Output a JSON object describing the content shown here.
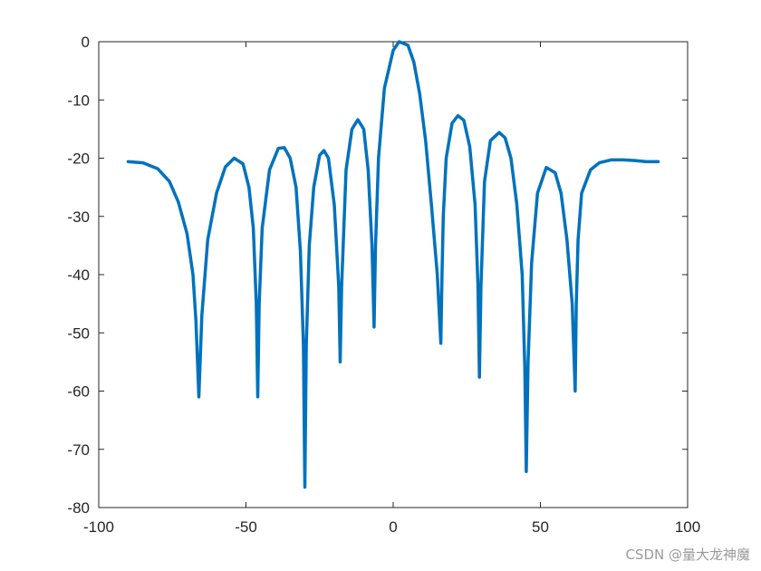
{
  "chart_data": {
    "type": "line",
    "title": "",
    "xlabel": "",
    "ylabel": "",
    "xlim": [
      -100,
      100
    ],
    "ylim": [
      -80,
      0
    ],
    "xticks": [
      -100,
      -50,
      0,
      50,
      100
    ],
    "yticks": [
      0,
      -10,
      -20,
      -30,
      -40,
      -50,
      -60,
      -70,
      -80
    ],
    "xtick_labels": [
      "-100",
      "-50",
      "0",
      "50",
      "100"
    ],
    "ytick_labels": [
      "0",
      "-10",
      "-20",
      "-30",
      "-40",
      "-50",
      "-60",
      "-70",
      "-80"
    ],
    "grid": false,
    "series": [
      {
        "color": "#0072BD",
        "x": [
          -90,
          -85,
          -80,
          -76,
          -73,
          -70,
          -68,
          -67,
          -66,
          -65,
          -63,
          -60,
          -57,
          -54,
          -51,
          -49,
          -47.5,
          -46.5,
          -46,
          -45.5,
          -44.5,
          -42,
          -39,
          -37,
          -35,
          -33,
          -31.5,
          -30.5,
          -30,
          -29.5,
          -28.5,
          -27,
          -25,
          -23.5,
          -22,
          -20,
          -18.5,
          -18,
          -17.5,
          -16,
          -14,
          -12,
          -10,
          -8.5,
          -7.2,
          -6.5,
          -6,
          -5,
          -3,
          0,
          2,
          5,
          7,
          9,
          11,
          13,
          15,
          16.2,
          16.6,
          17,
          18,
          20,
          22,
          24,
          26,
          27.8,
          28.8,
          29.3,
          29.8,
          31,
          33,
          36,
          38,
          40,
          42,
          43.8,
          44.7,
          45.2,
          45.8,
          47,
          49,
          52,
          55,
          57,
          59,
          60.8,
          61.8,
          62.2,
          62.8,
          64,
          67,
          70,
          74,
          78,
          82,
          86,
          90
        ],
        "y": [
          -20.6,
          -20.8,
          -21.8,
          -24,
          -27.5,
          -33,
          -40,
          -48,
          -61,
          -47,
          -34,
          -26,
          -21.5,
          -20,
          -21,
          -25,
          -32,
          -45,
          -61,
          -45,
          -32,
          -22,
          -18.3,
          -18.2,
          -20,
          -25,
          -36,
          -52,
          -76.5,
          -52,
          -35,
          -25,
          -19.5,
          -18.7,
          -20,
          -28,
          -42,
          -55,
          -42,
          -22,
          -15,
          -13.4,
          -15,
          -22,
          -35,
          -49,
          -35,
          -20,
          -8,
          -1.5,
          0,
          -0.6,
          -3.5,
          -9,
          -17,
          -28,
          -40,
          -51.8,
          -40,
          -30,
          -20,
          -14,
          -12.7,
          -13.5,
          -18,
          -28,
          -42,
          -57.6,
          -42,
          -24,
          -17,
          -15.6,
          -16.5,
          -20,
          -28,
          -40,
          -56,
          -73.8,
          -55,
          -38,
          -26,
          -21.6,
          -22.5,
          -26,
          -34,
          -45,
          -60,
          -45,
          -34,
          -26,
          -22,
          -20.8,
          -20.3,
          -20.3,
          -20.4,
          -20.6,
          -20.6
        ]
      }
    ]
  },
  "watermark": {
    "text": "CSDN @量大龙神魔"
  }
}
